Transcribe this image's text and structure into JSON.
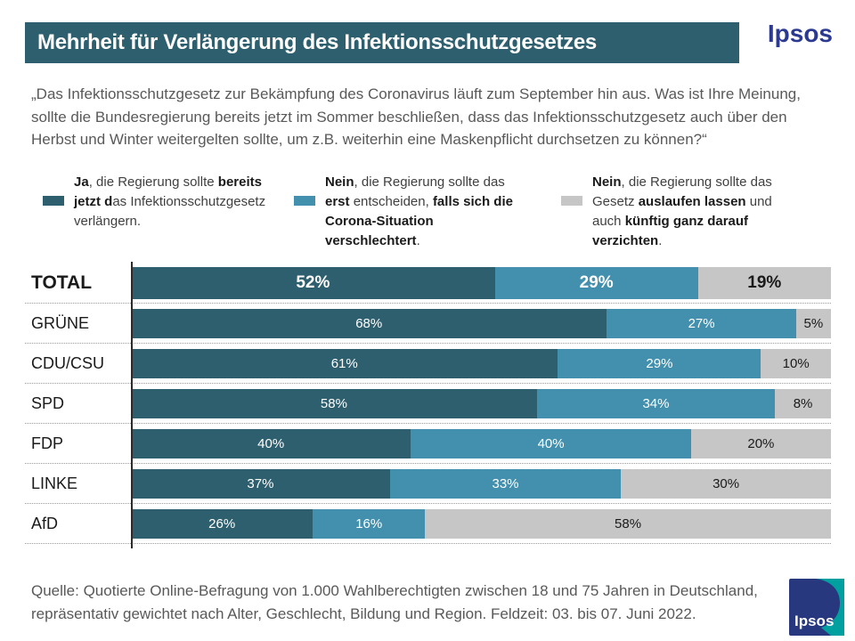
{
  "header": {
    "title": "Mehrheit für Verlängerung des Infektionsschutzgesetzes",
    "brand": "Ipsos"
  },
  "question": "„Das Infektionsschutzgesetz zur Bekämpfung des Coronavirus läuft zum September hin aus. Was ist Ihre Meinung, sollte die Bundesregierung bereits jetzt im Sommer beschließen, dass das Infektionsschutzgesetz auch über den Herbst und Winter weitergelten sollte, um z.B. weiterhin eine Maskenpflicht durchsetzen zu können?“",
  "legend": [
    {
      "color": "#2E5F6E",
      "segments": [
        {
          "t": "Ja",
          "b": true
        },
        {
          "t": ", die Regierung sollte ",
          "b": false
        },
        {
          "t": "bereits jetzt d",
          "b": true
        },
        {
          "t": "as Infektions­schutzgesetz verlängern.",
          "b": false
        }
      ]
    },
    {
      "color": "#4290AD",
      "segments": [
        {
          "t": "Nein",
          "b": true
        },
        {
          "t": ", die Regierung sollte das ",
          "b": false
        },
        {
          "t": "erst",
          "b": true
        },
        {
          "t": " entscheiden, ",
          "b": false
        },
        {
          "t": "falls sich die Corona-Situation verschlechtert",
          "b": true
        },
        {
          "t": ".",
          "b": false
        }
      ]
    },
    {
      "color": "#C6C6C6",
      "segments": [
        {
          "t": "Nein",
          "b": true
        },
        {
          "t": ", die Regierung sollte das Gesetz ",
          "b": false
        },
        {
          "t": "auslaufen lassen",
          "b": true
        },
        {
          "t": " und auch ",
          "b": false
        },
        {
          "t": "künftig ganz darauf verzichten",
          "b": true
        },
        {
          "t": ".",
          "b": false
        }
      ]
    }
  ],
  "chart_data": {
    "type": "bar",
    "orientation": "horizontal",
    "stacked": true,
    "value_suffix": "%",
    "xlim": [
      0,
      100
    ],
    "categories": [
      "TOTAL",
      "GRÜNE",
      "CDU/CSU",
      "SPD",
      "FDP",
      "LINKE",
      "AfD"
    ],
    "series": [
      {
        "name": "Ja, die Regierung sollte bereits jetzt das Infektionsschutzgesetz verlängern.",
        "color": "#2E5F6E",
        "label_color": "#ffffff",
        "values": [
          52,
          68,
          61,
          58,
          40,
          37,
          26
        ]
      },
      {
        "name": "Nein, die Regierung sollte das erst entscheiden, falls sich die Corona-Situation verschlechtert.",
        "color": "#4290AD",
        "label_color": "#ffffff",
        "values": [
          29,
          27,
          29,
          34,
          40,
          33,
          16
        ]
      },
      {
        "name": "Nein, die Regierung sollte das Gesetz auslaufen lassen und auch künftig ganz darauf verzichten.",
        "color": "#C6C6C6",
        "label_color": "#1a1a1a",
        "values": [
          19,
          5,
          10,
          8,
          20,
          30,
          58
        ]
      }
    ]
  },
  "footer": {
    "source": "Quelle: Quotierte Online-Befragung von 1.000 Wahlberechtigten zwischen 18 und 75 Jahren in Deutschland, repräsentativ gewichtet nach Alter, Geschlecht, Bildung und Region. Feldzeit: 03. bis 07. Juni 2022.",
    "logo_text": "Ipsos"
  },
  "colors": {
    "title_bar": "#2E5F6E",
    "brand_blue": "#2B3990",
    "logo_teal": "#00A0A0",
    "body_text": "#595959"
  }
}
